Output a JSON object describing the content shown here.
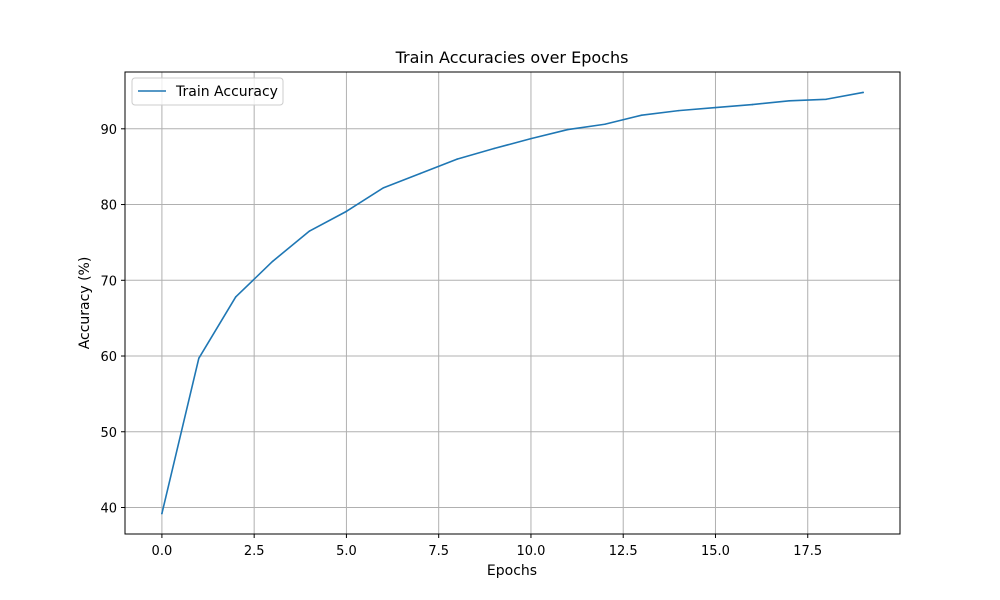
{
  "chart_data": {
    "type": "line",
    "title": "Train Accuracies over Epochs",
    "xlabel": "Epochs",
    "ylabel": "Accuracy (%)",
    "xlim": [
      -1.0,
      20.0
    ],
    "ylim": [
      36.5,
      97.5
    ],
    "xticks": [
      0.0,
      2.5,
      5.0,
      7.5,
      10.0,
      12.5,
      15.0,
      17.5
    ],
    "xtick_labels": [
      "0.0",
      "2.5",
      "5.0",
      "7.5",
      "10.0",
      "12.5",
      "15.0",
      "17.5"
    ],
    "yticks": [
      40,
      50,
      60,
      70,
      80,
      90
    ],
    "ytick_labels": [
      "40",
      "50",
      "60",
      "70",
      "80",
      "90"
    ],
    "grid": true,
    "legend": "upper-left",
    "series": [
      {
        "name": "Train Accuracy",
        "color": "#1f77b4",
        "x": [
          0,
          1,
          2,
          3,
          4,
          5,
          6,
          7,
          8,
          9,
          10,
          11,
          12,
          13,
          14,
          15,
          16,
          17,
          18,
          19
        ],
        "y": [
          39.2,
          59.7,
          67.8,
          72.5,
          76.5,
          79.1,
          82.2,
          84.1,
          86.0,
          87.4,
          88.7,
          89.9,
          90.6,
          91.8,
          92.4,
          92.8,
          93.2,
          93.7,
          93.9,
          94.8
        ]
      }
    ]
  }
}
